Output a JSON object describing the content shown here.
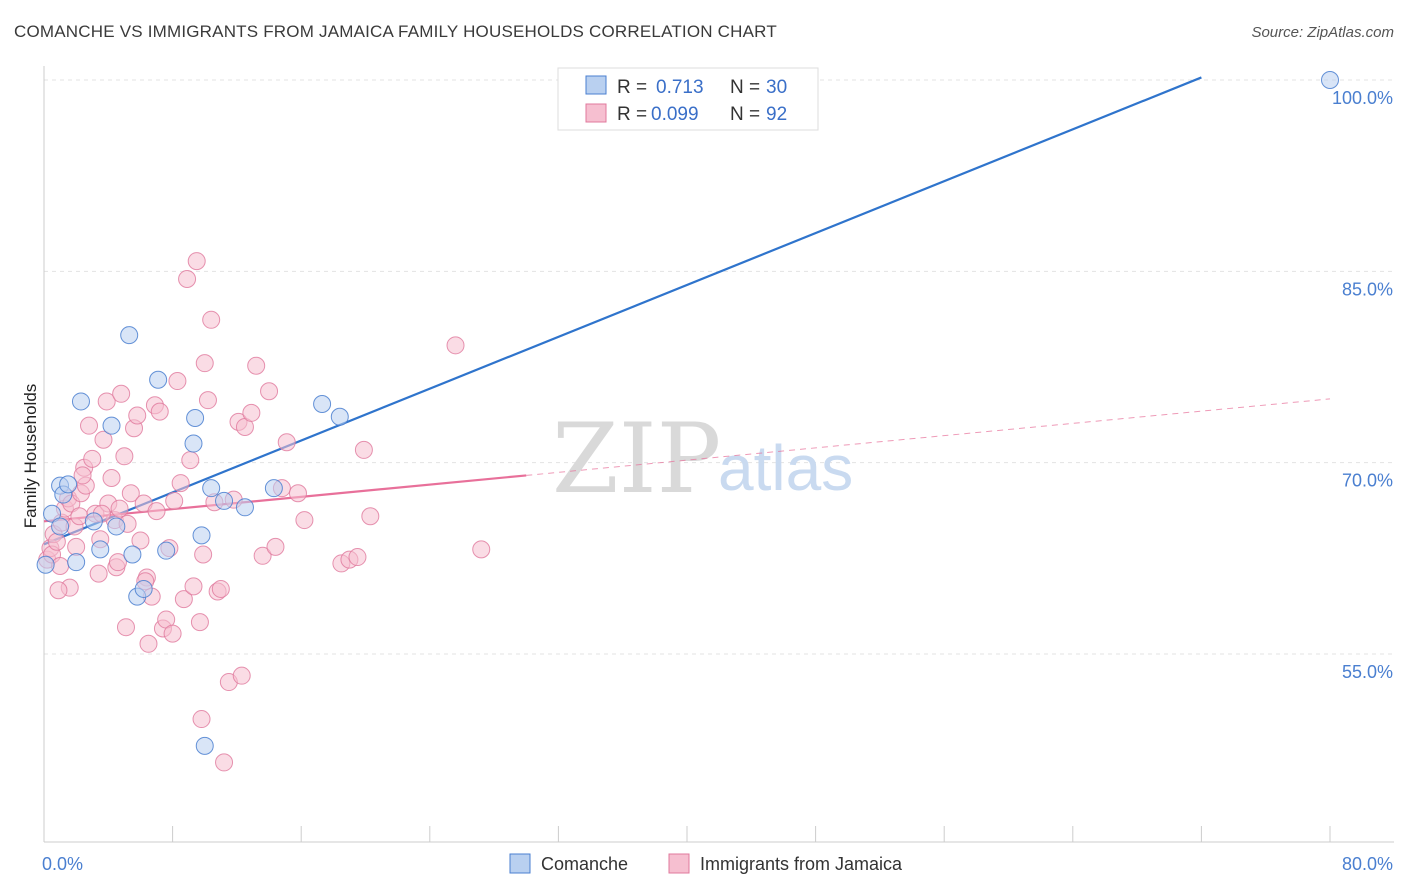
{
  "title": "COMANCHE VS IMMIGRANTS FROM JAMAICA FAMILY HOUSEHOLDS CORRELATION CHART",
  "source": "Source: ZipAtlas.com",
  "watermark": {
    "zip": "ZIP",
    "atlas": "atlas"
  },
  "colors": {
    "blue": "#4a7fd0",
    "blue_fill": "#b9d0f0",
    "blue_line": "#2f74cc",
    "pink": "#e0789c",
    "pink_fill": "#f6bfd0",
    "pink_line": "#e8709a",
    "grid": "#e3e3e3"
  },
  "legend": {
    "rows": [
      {
        "r_label": "R =",
        "r_value": "0.713",
        "n_label": "N =",
        "n_value": "30"
      },
      {
        "r_label": "R =",
        "r_value": "0.099",
        "n_label": "N =",
        "n_value": "92"
      }
    ]
  },
  "chart_data": {
    "type": "scatter",
    "title": "COMANCHE VS IMMIGRANTS FROM JAMAICA FAMILY HOUSEHOLDS CORRELATION CHART",
    "xlabel": "",
    "ylabel": "Family Households",
    "xlim": [
      0,
      80
    ],
    "ylim": [
      40,
      101
    ],
    "x_tick_labels": [
      "0.0%",
      "80.0%"
    ],
    "y_ticks": [
      55,
      70,
      85,
      100
    ],
    "y_tick_labels": [
      "55.0%",
      "70.0%",
      "85.0%",
      "100.0%"
    ],
    "grid": true,
    "legend_position": "top-center",
    "series": [
      {
        "name": "Comanche",
        "color": "#4a7fd0",
        "r": 0.713,
        "n": 30,
        "trend": {
          "x": [
            0,
            72
          ],
          "y": [
            63.6,
            100.2
          ]
        },
        "points": [
          [
            0.1,
            62.0
          ],
          [
            0.5,
            66.0
          ],
          [
            1.0,
            68.2
          ],
          [
            1.2,
            67.5
          ],
          [
            1.5,
            68.3
          ],
          [
            2.3,
            74.8
          ],
          [
            3.1,
            65.4
          ],
          [
            3.5,
            63.2
          ],
          [
            4.2,
            72.9
          ],
          [
            4.5,
            65.0
          ],
          [
            5.3,
            80.0
          ],
          [
            5.5,
            62.8
          ],
          [
            5.8,
            59.5
          ],
          [
            6.2,
            60.1
          ],
          [
            7.1,
            76.5
          ],
          [
            7.6,
            63.1
          ],
          [
            9.4,
            73.5
          ],
          [
            9.8,
            64.3
          ],
          [
            10.4,
            68.0
          ],
          [
            11.2,
            67.0
          ],
          [
            12.5,
            66.5
          ],
          [
            14.3,
            68.0
          ],
          [
            17.3,
            74.6
          ],
          [
            18.4,
            73.6
          ],
          [
            33.0,
            100.0
          ],
          [
            80.0,
            100.0
          ],
          [
            10.0,
            47.8
          ],
          [
            2.0,
            62.2
          ],
          [
            1.0,
            65.0
          ],
          [
            9.3,
            71.5
          ]
        ]
      },
      {
        "name": "Immigrants from Jamaica",
        "color": "#e0789c",
        "r": 0.099,
        "n": 92,
        "trend": {
          "x": [
            0,
            30
          ],
          "y": [
            65.4,
            69.0
          ]
        },
        "trend_extended": {
          "x": [
            30,
            80
          ],
          "y": [
            69.0,
            75.0
          ]
        },
        "points": [
          [
            0.2,
            62.4
          ],
          [
            0.4,
            63.3
          ],
          [
            0.5,
            62.8
          ],
          [
            0.6,
            64.4
          ],
          [
            0.8,
            63.8
          ],
          [
            1.0,
            61.9
          ],
          [
            1.1,
            65.3
          ],
          [
            1.3,
            66.4
          ],
          [
            1.5,
            67.2
          ],
          [
            1.7,
            66.8
          ],
          [
            1.9,
            65.0
          ],
          [
            2.0,
            63.4
          ],
          [
            2.2,
            65.8
          ],
          [
            2.3,
            67.6
          ],
          [
            2.5,
            69.6
          ],
          [
            2.6,
            68.2
          ],
          [
            2.8,
            72.9
          ],
          [
            3.0,
            70.3
          ],
          [
            3.2,
            66.0
          ],
          [
            3.4,
            61.3
          ],
          [
            3.5,
            64.0
          ],
          [
            3.7,
            71.8
          ],
          [
            3.9,
            74.8
          ],
          [
            4.0,
            66.8
          ],
          [
            4.2,
            68.8
          ],
          [
            4.4,
            65.5
          ],
          [
            4.5,
            61.8
          ],
          [
            4.6,
            62.2
          ],
          [
            4.7,
            66.4
          ],
          [
            4.8,
            75.4
          ],
          [
            5.0,
            70.5
          ],
          [
            5.2,
            65.2
          ],
          [
            5.4,
            67.6
          ],
          [
            5.6,
            72.7
          ],
          [
            5.8,
            73.7
          ],
          [
            6.0,
            63.9
          ],
          [
            6.2,
            66.8
          ],
          [
            6.4,
            61.0
          ],
          [
            6.5,
            55.8
          ],
          [
            6.7,
            59.5
          ],
          [
            6.9,
            74.5
          ],
          [
            7.0,
            66.2
          ],
          [
            7.2,
            74.0
          ],
          [
            7.4,
            57.0
          ],
          [
            7.6,
            57.7
          ],
          [
            7.8,
            63.3
          ],
          [
            8.0,
            56.6
          ],
          [
            8.1,
            67.0
          ],
          [
            8.3,
            76.4
          ],
          [
            8.5,
            68.4
          ],
          [
            8.7,
            59.3
          ],
          [
            8.9,
            84.4
          ],
          [
            9.1,
            70.2
          ],
          [
            9.3,
            60.3
          ],
          [
            9.5,
            85.8
          ],
          [
            9.7,
            57.5
          ],
          [
            9.9,
            62.8
          ],
          [
            10.0,
            77.8
          ],
          [
            10.2,
            74.9
          ],
          [
            10.4,
            81.2
          ],
          [
            10.6,
            66.9
          ],
          [
            10.8,
            59.9
          ],
          [
            11.0,
            60.1
          ],
          [
            11.2,
            46.5
          ],
          [
            11.5,
            52.8
          ],
          [
            11.8,
            67.1
          ],
          [
            12.1,
            73.2
          ],
          [
            12.5,
            72.8
          ],
          [
            12.9,
            73.9
          ],
          [
            13.2,
            77.6
          ],
          [
            13.6,
            62.7
          ],
          [
            14.0,
            75.6
          ],
          [
            14.4,
            63.4
          ],
          [
            14.8,
            68.0
          ],
          [
            15.1,
            71.6
          ],
          [
            15.8,
            67.6
          ],
          [
            16.2,
            65.5
          ],
          [
            18.5,
            62.1
          ],
          [
            19.0,
            62.4
          ],
          [
            19.5,
            62.6
          ],
          [
            19.9,
            71.0
          ],
          [
            20.3,
            65.8
          ],
          [
            25.6,
            79.2
          ],
          [
            27.2,
            63.2
          ],
          [
            9.8,
            49.9
          ],
          [
            1.6,
            60.2
          ],
          [
            2.4,
            69.0
          ],
          [
            3.6,
            66.0
          ],
          [
            0.9,
            60.0
          ],
          [
            6.3,
            60.7
          ],
          [
            12.3,
            53.3
          ],
          [
            5.1,
            57.1
          ]
        ]
      }
    ]
  },
  "bottom_legend": [
    {
      "label": "Comanche"
    },
    {
      "label": "Immigrants from Jamaica"
    }
  ]
}
